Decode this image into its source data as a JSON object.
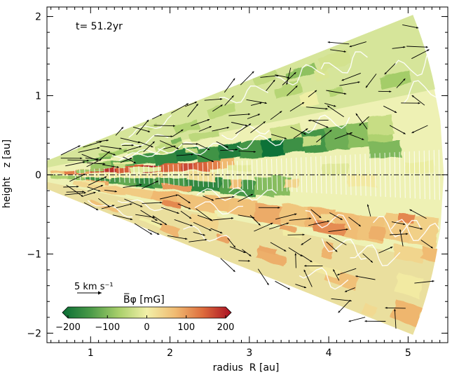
{
  "chart_data": {
    "type": "heatmap",
    "title": "",
    "annotation": "t= 51.2yr",
    "xlabel": "radius  R [au]",
    "ylabel": "height   z [au]",
    "xlim": [
      0.45,
      5.5
    ],
    "ylim": [
      -2.12,
      2.12
    ],
    "xticks": [
      {
        "value": 1,
        "label": "1"
      },
      {
        "value": 2,
        "label": "2"
      },
      {
        "value": 3,
        "label": "3"
      },
      {
        "value": 4,
        "label": "4"
      },
      {
        "value": 5,
        "label": "5"
      }
    ],
    "yticks": [
      {
        "value": -2,
        "label": "−2"
      },
      {
        "value": -1,
        "label": "−1"
      },
      {
        "value": 0,
        "label": "0"
      },
      {
        "value": 1,
        "label": "1"
      },
      {
        "value": 2,
        "label": "2"
      }
    ],
    "domain_opening_angle": 0.38,
    "domain_r_min": 0.45,
    "domain_r_max": 5.45,
    "midplane_line": "dash-dot",
    "velocity_reference": {
      "label": "5 km s⁻¹",
      "value_km_s": 5
    },
    "colorbar": {
      "label": "B̅φ  [mG]",
      "range": [
        -200,
        200
      ],
      "ticks": [
        {
          "value": -200,
          "label": "−200"
        },
        {
          "value": -100,
          "label": "−100"
        },
        {
          "value": 0,
          "label": "0"
        },
        {
          "value": 100,
          "label": "100"
        },
        {
          "value": 200,
          "label": "200"
        }
      ],
      "colors": [
        "#0a6d35",
        "#4a9a48",
        "#a8cf6a",
        "#f2f0a8",
        "#f0bb72",
        "#dd6b3c",
        "#a90f23"
      ]
    },
    "bphi_structure": [
      {
        "region": "upper_current_sheet",
        "r_range": [
          0.5,
          2.8
        ],
        "z_over_r": 0.05,
        "value_mG": 200
      },
      {
        "region": "upper_green_layer",
        "r_range": [
          1.0,
          4.8
        ],
        "z_over_r": 0.11,
        "value_mG": -200
      },
      {
        "region": "lower_green_layer",
        "r_range": [
          0.5,
          3.5
        ],
        "z_over_r": -0.05,
        "value_mG": -200
      },
      {
        "region": "lower_orange_layer",
        "r_range": [
          0.8,
          5.4
        ],
        "z_over_r": -0.14,
        "value_mG": 90
      }
    ]
  }
}
